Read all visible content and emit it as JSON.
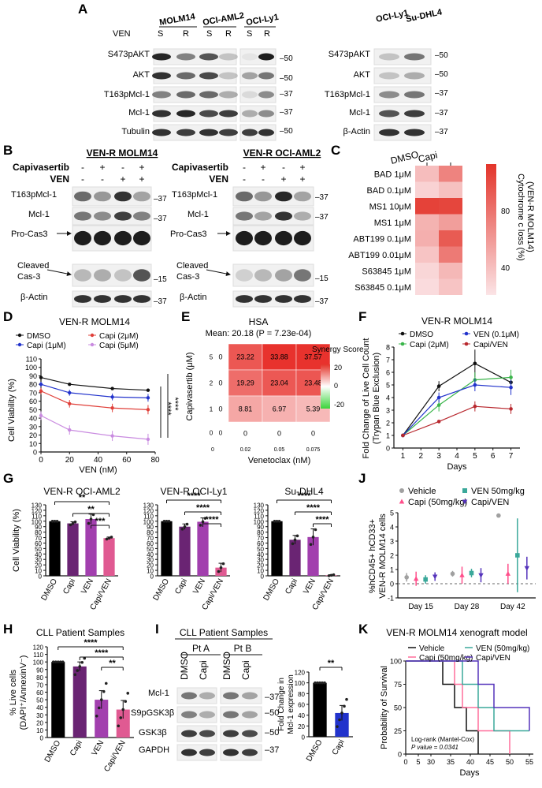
{
  "panels": {
    "A": "A",
    "B": "B",
    "C": "C",
    "D": "D",
    "E": "E",
    "F": "F",
    "G": "G",
    "H": "H",
    "I": "I",
    "J": "J",
    "K": "K"
  },
  "A": {
    "lines": [
      "MOLM14",
      "OCI-AML2",
      "OCI-Ly1"
    ],
    "lines2": [
      "OCI-Ly1",
      "Su-DHL4"
    ],
    "ven_label": "VEN",
    "sr": [
      "S",
      "R"
    ],
    "rows": [
      "S473pAKT",
      "AKT",
      "T163pMcl-1",
      "Mcl-1",
      "Tubulin"
    ],
    "rows2": [
      "S473pAKT",
      "AKT",
      "T163pMcl-1",
      "Mcl-1",
      "β-Actin"
    ],
    "mw": [
      "–50",
      "–50",
      "–37",
      "–37",
      "–50"
    ],
    "mw2": [
      "–50",
      "–50",
      "–37",
      "–37",
      "–37"
    ]
  },
  "B": {
    "title1": "VEN-R MOLM14",
    "title2": "VEN-R OCI-AML2",
    "capi": "Capivasertib",
    "ven": "VEN",
    "capi_signs": [
      "-",
      "+",
      "-",
      "+"
    ],
    "ven_signs": [
      "-",
      "-",
      "+",
      "+"
    ],
    "rows": [
      "T163pMcl-1",
      "Mcl-1",
      "Pro-Cas3",
      "Cleaved",
      "Cas-3",
      "β-Actin"
    ],
    "mw": [
      "–37",
      "–37",
      "–15",
      "–37"
    ]
  },
  "C": {
    "cols": [
      "DMSO",
      "Capi"
    ],
    "rows": [
      "BAD 1μM",
      "BAD 0.1μM",
      "MS1 10μM",
      "MS1 1μM",
      "ABT199 0.1μM",
      "ABT199 0.01μM",
      "S63845 1μM",
      "S63845 0.1μM"
    ],
    "values": [
      [
        22,
        55
      ],
      [
        10,
        20
      ],
      [
        92,
        90
      ],
      [
        28,
        40
      ],
      [
        30,
        78
      ],
      [
        18,
        60
      ],
      [
        8,
        25
      ],
      [
        5,
        18
      ]
    ],
    "colorbar_label": "Cytochrome c loss (%)",
    "colorbar_label2": "(VEN-R MOLM14)",
    "ticks": [
      "80",
      "40"
    ]
  },
  "D": {
    "title": "VEN-R MOLM14",
    "legend": [
      "DMSO",
      "Capi (1μM)",
      "Capi (2μM)",
      "Capi (5μM)"
    ],
    "ylabel": "Cell Viability (%)",
    "xlabel": "VEN (nM)",
    "yticks": [
      "0",
      "10",
      "20",
      "30",
      "40",
      "50",
      "60",
      "70",
      "80",
      "90",
      "100",
      "110"
    ],
    "xticks": [
      "0",
      "20",
      "40",
      "60",
      "80"
    ],
    "sig": [
      "****",
      "****"
    ]
  },
  "E": {
    "title": "HSA",
    "subtitle": "Mean: 20.18 (P = 7.23e-04)",
    "ylabel": "Capivasertib (μM)",
    "xlabel": "Venetoclax (nM)",
    "ytick_labels": [
      "5",
      "2",
      "1",
      "0"
    ],
    "xtick_labels": [
      "0",
      "0.02",
      "0.05",
      "0.075"
    ],
    "cells": [
      [
        "23.22",
        "33.88",
        "37.57"
      ],
      [
        "19.29",
        "23.04",
        "23.48"
      ],
      [
        "8.81",
        "6.97",
        "5.39"
      ]
    ],
    "zero": "0",
    "legend_title": "Synergy Score",
    "legend_ticks": [
      "20",
      "0",
      "-20"
    ]
  },
  "F": {
    "title": "VEN-R MOLM14",
    "legend": [
      "DMSO",
      "Capi (2μM)",
      "VEN (0.1μM)",
      "Capi/VEN"
    ],
    "ylabel": "Fold Change of Live Cell Count",
    "ylabel2": "(Trypan Blue Exclusion)",
    "xlabel": "Days",
    "yticks": [
      "0",
      "1",
      "2",
      "3",
      "4",
      "5",
      "6",
      "7",
      "8"
    ],
    "xticks": [
      "1",
      "2",
      "3",
      "4",
      "5",
      "6",
      "7"
    ]
  },
  "G": {
    "ylabel": "Cell Viability (%)",
    "yticks": [
      "0",
      "10",
      "20",
      "30",
      "40",
      "50",
      "60",
      "70",
      "80",
      "90",
      "100",
      "110",
      "120",
      "130"
    ],
    "categories": [
      "DMSO",
      "Capi",
      "VEN",
      "Capi/VEN"
    ],
    "titles": [
      "VEN-R OCI-AML2",
      "VEN-R OCI-Ly1",
      "Su-DHL4"
    ],
    "sig1": [
      "**",
      "**",
      "***"
    ],
    "sig2": [
      "****",
      "****",
      "****"
    ],
    "sig3": [
      "****",
      "****",
      "****"
    ]
  },
  "H": {
    "title": "CLL Patient Samples",
    "ylabel": "% Live cells",
    "ylabel2": "(DAPI⁺/AnnexinV⁻)",
    "yticks": [
      "0",
      "10",
      "20",
      "30",
      "40",
      "50",
      "60",
      "70",
      "80",
      "90",
      "100",
      "110",
      "120"
    ],
    "categories": [
      "DMSO",
      "Capi",
      "VEN",
      "Capi/VEN"
    ],
    "sig": [
      "****",
      "****",
      "**"
    ]
  },
  "I": {
    "title": "CLL Patient Samples",
    "pts": [
      "Pt A",
      "Pt B"
    ],
    "cols": [
      "DMSO",
      "Capi"
    ],
    "rows": [
      "Mcl-1",
      "S9pGSK3β",
      "GSK3β",
      "GAPDH"
    ],
    "mw": [
      "–37",
      "–50",
      "–50",
      "–37"
    ],
    "bar_ylabel": "Fold Change in",
    "bar_ylabel2": "Mcl-1 expression",
    "bar_yticks": [
      "0",
      "20",
      "40",
      "60",
      "80",
      "100",
      "120"
    ],
    "bar_categories": [
      "DMSO",
      "Capi"
    ],
    "sig": "**"
  },
  "J": {
    "legend": [
      "Vehicle",
      "Capi (50mg/kg)",
      "VEN 50mg/kg",
      "Capi/VEN"
    ],
    "ylabel": "%hCD45+ hCD33+",
    "ylabel2": "VEN-R MOLM14 cells",
    "yticks": [
      "-1",
      "0",
      "1",
      "2",
      "3",
      "4",
      "5"
    ],
    "xticks": [
      "Day 15",
      "Day 28",
      "Day 42"
    ]
  },
  "K": {
    "title": "VEN-R MOLM14 xenograft model",
    "legend": [
      "Vehicle",
      "Capi (50mg/kg)",
      "VEN (50mg/kg)",
      "Capi/VEN"
    ],
    "ylabel": "Probability of Survival",
    "xlabel": "Days",
    "yticks": [
      "0",
      "25",
      "50",
      "75",
      "100"
    ],
    "xticks": [
      "0",
      "5",
      "30",
      "35",
      "40",
      "45",
      "50",
      "55"
    ],
    "note1": "Log-rank (Mantel-Cox)",
    "note2": "P value = 0.0341"
  },
  "chart_data": [
    {
      "type": "line",
      "panel": "D",
      "title": "VEN-R MOLM14",
      "xlabel": "VEN (nM)",
      "ylabel": "Cell Viability (%)",
      "x": [
        0,
        20,
        50,
        75
      ],
      "ylim": [
        0,
        110
      ],
      "xlim": [
        0,
        80
      ],
      "series": [
        {
          "name": "DMSO",
          "values": [
            88,
            80,
            75,
            73
          ],
          "color": "#111111"
        },
        {
          "name": "Capi (1μM)",
          "values": [
            80,
            70,
            65,
            64
          ],
          "color": "#2233cc"
        },
        {
          "name": "Capi (2μM)",
          "values": [
            72,
            57,
            52,
            50
          ],
          "color": "#e0403a"
        },
        {
          "name": "Capi (5μM)",
          "values": [
            43,
            26,
            19,
            15
          ],
          "color": "#c98be0"
        }
      ]
    },
    {
      "type": "heatmap",
      "panel": "E",
      "title": "HSA",
      "x": [
        "0.02",
        "0.05",
        "0.075"
      ],
      "y": [
        "5",
        "2",
        "1"
      ],
      "values": [
        [
          23.22,
          33.88,
          37.57
        ],
        [
          19.29,
          23.04,
          23.48
        ],
        [
          8.81,
          6.97,
          5.39
        ]
      ]
    },
    {
      "type": "line",
      "panel": "F",
      "title": "VEN-R MOLM14",
      "xlabel": "Days",
      "x": [
        1,
        3,
        5,
        7
      ],
      "ylim": [
        0,
        8
      ],
      "series": [
        {
          "name": "DMSO",
          "values": [
            1,
            4.9,
            6.7,
            5.2
          ],
          "color": "#111111"
        },
        {
          "name": "Capi (2μM)",
          "values": [
            1,
            3.4,
            5.4,
            5.6
          ],
          "color": "#3ab54a"
        },
        {
          "name": "VEN (0.1μM)",
          "values": [
            1,
            4.0,
            5.0,
            4.8
          ],
          "color": "#2233cc"
        },
        {
          "name": "Capi/VEN",
          "values": [
            1,
            2.1,
            3.3,
            3.1
          ],
          "color": "#b8282e"
        }
      ]
    },
    {
      "type": "bar",
      "panel": "G",
      "title": "VEN-R OCI-AML2",
      "categories": [
        "DMSO",
        "Capi",
        "VEN",
        "Capi/VEN"
      ],
      "values": [
        100,
        96,
        104,
        69
      ],
      "ylim": [
        0,
        130
      ]
    },
    {
      "type": "bar",
      "panel": "G",
      "title": "VEN-R OCI-Ly1",
      "categories": [
        "DMSO",
        "Capi",
        "VEN",
        "Capi/VEN"
      ],
      "values": [
        100,
        90,
        99,
        15
      ],
      "ylim": [
        0,
        130
      ]
    },
    {
      "type": "bar",
      "panel": "G",
      "title": "Su-DHL4",
      "categories": [
        "DMSO",
        "Capi",
        "VEN",
        "Capi/VEN"
      ],
      "values": [
        100,
        66,
        71,
        1
      ],
      "ylim": [
        0,
        130
      ]
    },
    {
      "type": "bar",
      "panel": "H",
      "title": "CLL Patient Samples",
      "categories": [
        "DMSO",
        "Capi",
        "VEN",
        "Capi/VEN"
      ],
      "values": [
        100,
        94,
        50,
        37
      ],
      "ylim": [
        0,
        120
      ]
    },
    {
      "type": "bar",
      "panel": "I",
      "categories": [
        "DMSO",
        "Capi"
      ],
      "values": [
        100,
        44
      ],
      "ylim": [
        0,
        120
      ]
    },
    {
      "type": "scatter",
      "panel": "J",
      "categories": [
        "Day 15",
        "Day 28",
        "Day 42"
      ],
      "ylim": [
        -1,
        5
      ],
      "series": [
        {
          "name": "Vehicle",
          "values": [
            0.45,
            0.7,
            4.8
          ]
        },
        {
          "name": "Capi (50mg/kg)",
          "values": [
            0.35,
            0.6,
            0.7
          ]
        },
        {
          "name": "VEN 50mg/kg",
          "values": [
            0.3,
            0.75,
            2.0
          ]
        },
        {
          "name": "Capi/VEN",
          "values": [
            0.5,
            0.6,
            1.1
          ]
        }
      ]
    },
    {
      "type": "line",
      "panel": "K",
      "title": "VEN-R MOLM14 xenograft model",
      "xlabel": "Days",
      "ylabel": "Probability of Survival",
      "ylim": [
        0,
        100
      ],
      "xlim": [
        0,
        55
      ],
      "series": [
        {
          "name": "Vehicle",
          "x": [
            0,
            33,
            36,
            39,
            42
          ],
          "values": [
            100,
            75,
            50,
            25,
            0
          ]
        },
        {
          "name": "Capi (50mg/kg)",
          "x": [
            0,
            36,
            38,
            42,
            50
          ],
          "values": [
            100,
            75,
            50,
            25,
            0
          ]
        },
        {
          "name": "VEN (50mg/kg)",
          "x": [
            0,
            38,
            42,
            46,
            55
          ],
          "values": [
            100,
            75,
            50,
            25,
            25
          ]
        },
        {
          "name": "Capi/VEN",
          "x": [
            0,
            42,
            46,
            55
          ],
          "values": [
            100,
            75,
            50,
            25
          ]
        }
      ]
    }
  ]
}
